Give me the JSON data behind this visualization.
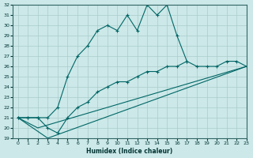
{
  "xlabel": "Humidex (Indice chaleur)",
  "ylabel": "",
  "bg_color": "#cce8e8",
  "grid_color": "#aacccc",
  "line_color": "#006666",
  "ylim": [
    19,
    32
  ],
  "xlim": [
    -0.5,
    23
  ],
  "yticks": [
    19,
    20,
    21,
    22,
    23,
    24,
    25,
    26,
    27,
    28,
    29,
    30,
    31,
    32
  ],
  "xticks": [
    0,
    1,
    2,
    3,
    4,
    5,
    6,
    7,
    8,
    9,
    10,
    11,
    12,
    13,
    14,
    15,
    16,
    17,
    18,
    19,
    20,
    21,
    22,
    23
  ],
  "line1_x": [
    0,
    1,
    2,
    3,
    4,
    5,
    6,
    7,
    8,
    9,
    10,
    11,
    12,
    13,
    14,
    15,
    16,
    17
  ],
  "line1_y": [
    21,
    21,
    21,
    21,
    22,
    25,
    27,
    28,
    29.5,
    30,
    29.5,
    31,
    29.5,
    32,
    31,
    32,
    29,
    26.5
  ],
  "line2_x": [
    0,
    1,
    2,
    3,
    4,
    5,
    6,
    7,
    8,
    9,
    10,
    11,
    12,
    13,
    14,
    15,
    16,
    17,
    18,
    19,
    20,
    21,
    22,
    23
  ],
  "line2_y": [
    21,
    21,
    21,
    20,
    19.5,
    21,
    22,
    22.5,
    23.5,
    24,
    24.5,
    24.5,
    25,
    25.5,
    25.5,
    26,
    26,
    26.5,
    26,
    26,
    26,
    26.5,
    26.5,
    26
  ],
  "line3_x": [
    0,
    2,
    23
  ],
  "line3_y": [
    21,
    20,
    26
  ],
  "line4_x": [
    0,
    3,
    23
  ],
  "line4_y": [
    21,
    19,
    26
  ]
}
